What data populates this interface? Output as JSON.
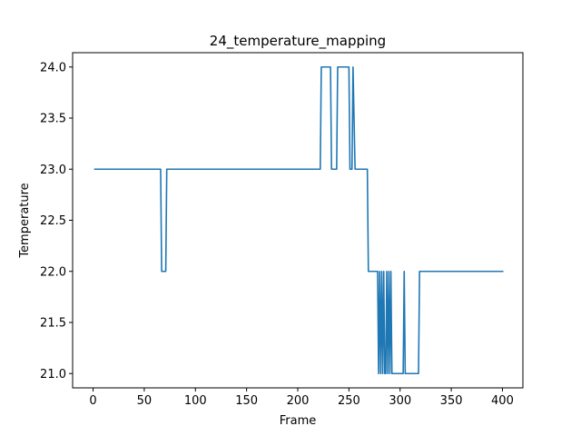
{
  "chart_data": {
    "type": "line",
    "title": "24_temperature_mapping",
    "xlabel": "Frame",
    "ylabel": "Temperature",
    "xlim": [
      -20,
      420
    ],
    "ylim": [
      20.86,
      24.14
    ],
    "xticks": [
      0,
      50,
      100,
      150,
      200,
      250,
      300,
      350,
      400
    ],
    "yticks": [
      21.0,
      21.5,
      22.0,
      22.5,
      23.0,
      23.5,
      24.0
    ],
    "xtick_labels": [
      "0",
      "50",
      "100",
      "150",
      "200",
      "250",
      "300",
      "350",
      "400"
    ],
    "ytick_labels": [
      "21.0",
      "21.5",
      "22.0",
      "22.5",
      "23.0",
      "23.5",
      "24.0"
    ],
    "grid": false,
    "line_color": "#1f77b4",
    "series": [
      {
        "x": [
          1,
          66,
          67,
          71,
          72,
          222,
          223,
          232,
          233,
          238,
          239,
          250,
          251,
          253,
          254,
          256,
          257,
          268,
          269,
          278,
          279,
          280,
          281,
          282,
          283,
          284,
          285,
          286,
          287,
          288,
          289,
          290,
          291,
          292,
          293,
          303,
          304,
          305,
          318,
          319,
          401
        ],
        "y": [
          23,
          23,
          22,
          22,
          23,
          23,
          24,
          24,
          23,
          23,
          24,
          24,
          23,
          23,
          24,
          23,
          23,
          23,
          22,
          22,
          21,
          22,
          21,
          22,
          21,
          22,
          21,
          21,
          22,
          21,
          22,
          21,
          22,
          21,
          21,
          21,
          22,
          21,
          21,
          22,
          22
        ]
      }
    ]
  }
}
